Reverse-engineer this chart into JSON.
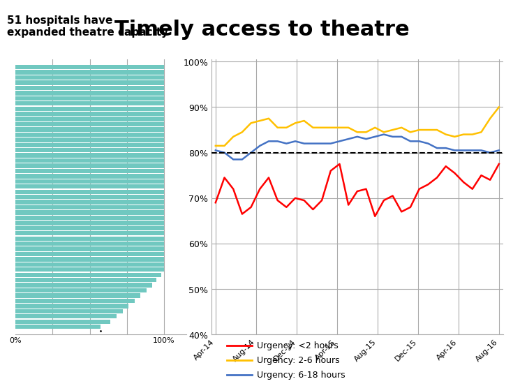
{
  "title": "Timely access to theatre",
  "subtitle": "51 hospitals have\nexpanded theatre capacity",
  "title_fontsize": 22,
  "subtitle_fontsize": 11,
  "line_colors": {
    "red": "#FF0000",
    "yellow": "#FFC000",
    "blue": "#4472C4"
  },
  "dashed_line_y": 0.8,
  "dashed_color": "#000000",
  "x_labels": [
    "Apr-14",
    "Aug-14",
    "Dec-14",
    "Apr-15",
    "Aug-15",
    "Dec-15",
    "Apr-16",
    "Aug-16"
  ],
  "red_data": [
    0.69,
    0.745,
    0.72,
    0.665,
    0.68,
    0.72,
    0.745,
    0.695,
    0.68,
    0.7,
    0.695,
    0.675,
    0.695,
    0.76,
    0.775,
    0.685,
    0.715,
    0.72,
    0.66,
    0.695,
    0.705,
    0.67,
    0.68,
    0.72,
    0.73,
    0.745,
    0.77,
    0.755,
    0.735,
    0.72,
    0.75,
    0.74,
    0.775
  ],
  "yellow_data": [
    0.815,
    0.815,
    0.835,
    0.845,
    0.865,
    0.87,
    0.875,
    0.855,
    0.855,
    0.865,
    0.87,
    0.855,
    0.855,
    0.855,
    0.855,
    0.855,
    0.845,
    0.845,
    0.855,
    0.845,
    0.85,
    0.855,
    0.845,
    0.85,
    0.85,
    0.85,
    0.84,
    0.835,
    0.84,
    0.84,
    0.845,
    0.875,
    0.9
  ],
  "blue_data": [
    0.805,
    0.8,
    0.785,
    0.785,
    0.8,
    0.815,
    0.825,
    0.825,
    0.82,
    0.825,
    0.82,
    0.82,
    0.82,
    0.82,
    0.825,
    0.83,
    0.835,
    0.83,
    0.835,
    0.84,
    0.835,
    0.835,
    0.825,
    0.825,
    0.82,
    0.81,
    0.81,
    0.805,
    0.805,
    0.805,
    0.805,
    0.8,
    0.805
  ],
  "ylim": [
    0.4,
    1.005
  ],
  "yticks": [
    0.4,
    0.5,
    0.6,
    0.7,
    0.8,
    0.9,
    1.0
  ],
  "ytick_labels": [
    "40%",
    "50%",
    "60%",
    "70%",
    "80%",
    "90%",
    "100%"
  ],
  "bar_color": "#70C8C0",
  "bar_values": [
    100,
    100,
    100,
    100,
    100,
    100,
    100,
    100,
    100,
    100,
    100,
    100,
    100,
    100,
    100,
    100,
    100,
    100,
    100,
    100,
    100,
    100,
    100,
    100,
    100,
    100,
    100,
    100,
    100,
    100,
    100,
    100,
    100,
    100,
    100,
    100,
    100,
    100,
    100,
    100,
    98,
    95,
    92,
    88,
    84,
    80,
    76,
    72,
    68,
    64,
    57
  ],
  "legend_labels": [
    "Urgency: <2 hours",
    "Urgency: 2-6 hours",
    "Urgency: 6-18 hours"
  ],
  "legend_colors": [
    "#FF0000",
    "#FFC000",
    "#4472C4"
  ],
  "bg_color": "#FFFFFF",
  "grid_color": "#AAAAAA"
}
